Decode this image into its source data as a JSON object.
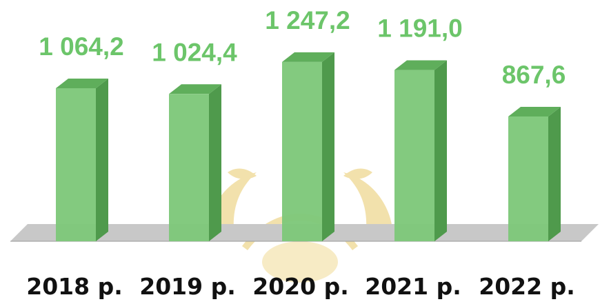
{
  "chart_data": {
    "type": "bar",
    "style": "3d-column",
    "categories": [
      "2018 р.",
      "2019 р.",
      "2020 р.",
      "2021 р.",
      "2022 р."
    ],
    "values": [
      1064.2,
      1024.4,
      1247.2,
      1191.0,
      867.6
    ],
    "value_labels": [
      "1 064,2",
      "1 024,4",
      "1 247,2",
      "1 191,0",
      "867,6"
    ],
    "title": "",
    "xlabel": "",
    "ylabel": "",
    "ylim": [
      0,
      1400
    ],
    "grid": false,
    "legend": "none"
  },
  "colors": {
    "bar_front": "#7ec87a",
    "bar_side": "#4f9a4c",
    "bar_top": "#5fae5b",
    "value_label": "#6cc56a",
    "floor": "#c8c8c8",
    "watermark": "#e8c96a"
  }
}
